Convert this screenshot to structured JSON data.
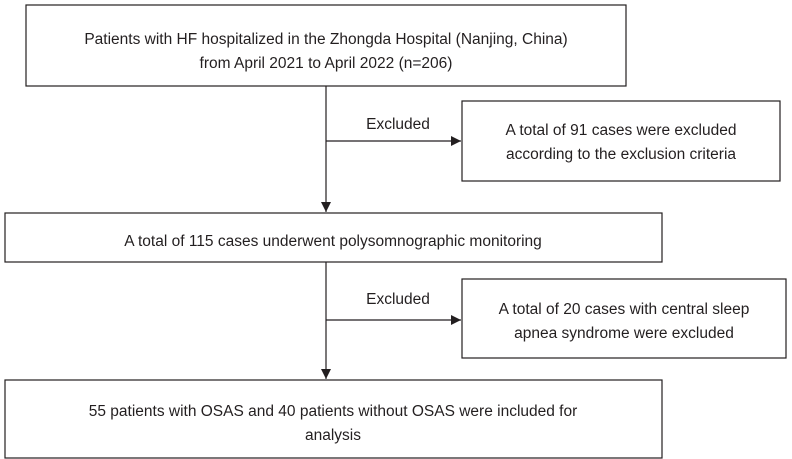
{
  "nodes": [
    {
      "lines": [
        "Patients with HF hospitalized in the Zhongda Hospital (Nanjing, China)",
        "from April 2021 to April 2022 (n=206)"
      ]
    },
    {
      "lines": [
        "A total of 91 cases were excluded",
        "according to the exclusion criteria"
      ]
    },
    {
      "lines": [
        "A total of 115 cases underwent polysomnographic monitoring"
      ]
    },
    {
      "lines": [
        "A total of 20 cases with central sleep",
        "apnea syndrome were excluded"
      ]
    },
    {
      "lines": [
        "55 patients with OSAS and 40 patients without OSAS were included for",
        "analysis"
      ]
    }
  ],
  "edges": [
    {
      "label": "Excluded"
    },
    {
      "label": "Excluded"
    }
  ]
}
